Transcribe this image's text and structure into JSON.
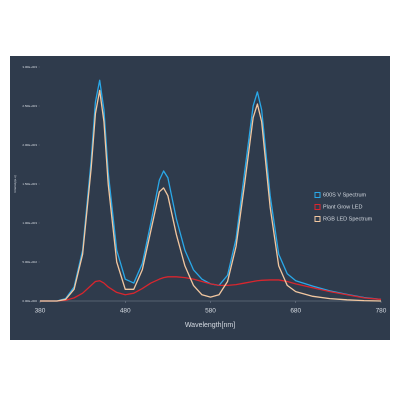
{
  "chart_data": {
    "type": "line",
    "xlabel": "Wavelength[nm]",
    "ylabel": "Intensity[a.u]",
    "x": [
      380,
      400,
      410,
      420,
      430,
      440,
      445,
      450,
      455,
      460,
      470,
      480,
      490,
      500,
      510,
      520,
      525,
      530,
      540,
      550,
      560,
      570,
      580,
      590,
      600,
      610,
      620,
      630,
      635,
      640,
      650,
      660,
      670,
      680,
      700,
      720,
      740,
      760,
      780
    ],
    "series": [
      {
        "name": "600S V Spectrum",
        "color": "#29a8e8",
        "values": [
          0,
          0,
          30,
          180,
          650,
          1800,
          2550,
          2830,
          2450,
          1650,
          650,
          280,
          230,
          480,
          1000,
          1550,
          1667,
          1580,
          1050,
          650,
          400,
          280,
          220,
          200,
          330,
          800,
          1650,
          2500,
          2680,
          2450,
          1350,
          600,
          350,
          260,
          190,
          130,
          85,
          45,
          20
        ]
      },
      {
        "name": "Plant Grow LED",
        "color": "#d8262e",
        "values": [
          0,
          0,
          10,
          40,
          100,
          200,
          250,
          260,
          230,
          180,
          110,
          80,
          100,
          160,
          230,
          280,
          300,
          310,
          310,
          300,
          280,
          250,
          220,
          200,
          200,
          210,
          230,
          250,
          260,
          265,
          270,
          270,
          250,
          220,
          170,
          120,
          80,
          40,
          20
        ]
      },
      {
        "name": "RGB LED Spectrum",
        "color": "#f2c7a0",
        "values": [
          0,
          0,
          20,
          150,
          600,
          1700,
          2400,
          2700,
          2300,
          1500,
          500,
          150,
          150,
          400,
          900,
          1400,
          1450,
          1350,
          850,
          450,
          200,
          80,
          50,
          80,
          250,
          700,
          1500,
          2350,
          2525,
          2300,
          1200,
          450,
          200,
          120,
          60,
          30,
          15,
          5,
          0
        ]
      }
    ],
    "xlim": [
      380,
      780
    ],
    "xticks": [
      380,
      480,
      580,
      680,
      780
    ],
    "ylim": [
      0,
      3000
    ],
    "yticks": [
      {
        "value": 0,
        "label": "0.00E+000"
      },
      {
        "value": 500,
        "label": "5.00E+002"
      },
      {
        "value": 1000,
        "label": "1.00E+003"
      },
      {
        "value": 1500,
        "label": "1.50E+003"
      },
      {
        "value": 2000,
        "label": "2.00E+003"
      },
      {
        "value": 2500,
        "label": "2.50E+003"
      },
      {
        "value": 3000,
        "label": "3.00E+003"
      }
    ],
    "legend": "right"
  }
}
